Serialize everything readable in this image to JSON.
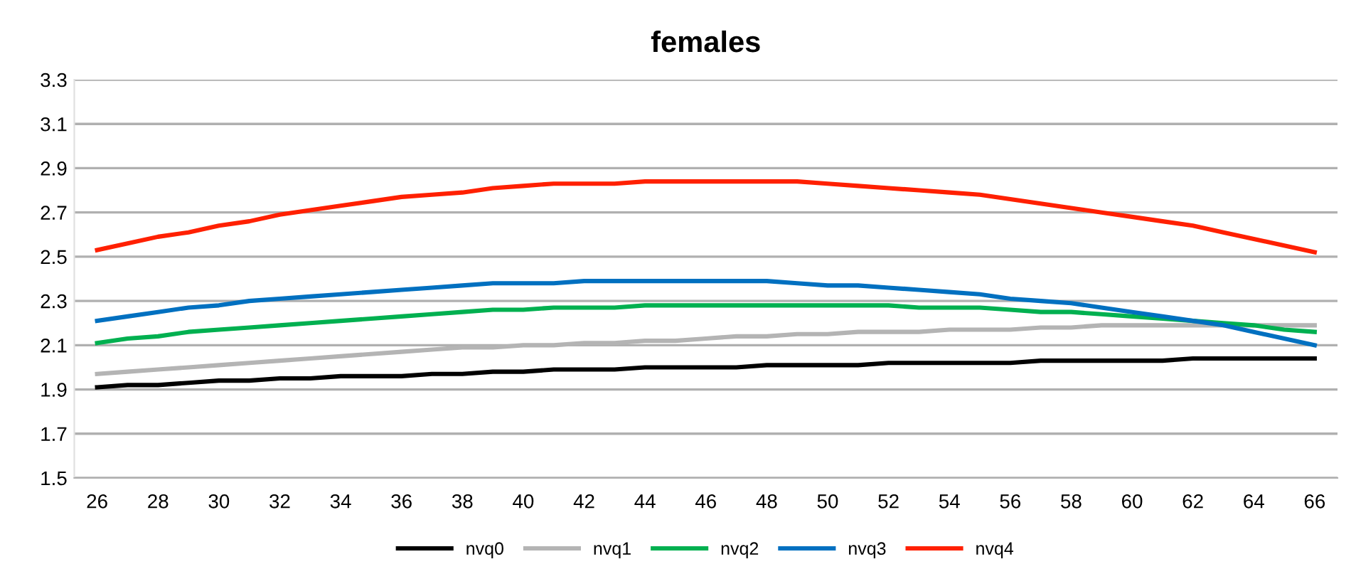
{
  "chart_data": {
    "type": "line",
    "title": "females",
    "categories": [
      "26",
      null,
      "28",
      null,
      "30",
      null,
      "32",
      null,
      "34",
      null,
      "36",
      null,
      "38",
      null,
      "40",
      null,
      "42",
      null,
      "44",
      null,
      "46",
      null,
      "48",
      null,
      "50",
      null,
      "52",
      null,
      "54",
      null,
      "56",
      null,
      "58",
      null,
      "60",
      null,
      "62",
      null,
      "64",
      null,
      "66"
    ],
    "series": [
      {
        "name": "nvq0",
        "color": "#000000",
        "values": [
          1.91,
          1.92,
          1.92,
          1.93,
          1.94,
          1.94,
          1.95,
          1.95,
          1.96,
          1.96,
          1.96,
          1.97,
          1.97,
          1.98,
          1.98,
          1.99,
          1.99,
          1.99,
          2.0,
          2.0,
          2.0,
          2.0,
          2.01,
          2.01,
          2.01,
          2.01,
          2.02,
          2.02,
          2.02,
          2.02,
          2.02,
          2.03,
          2.03,
          2.03,
          2.03,
          2.03,
          2.04,
          2.04,
          2.04,
          2.04,
          2.04
        ]
      },
      {
        "name": "nvq1",
        "color": "#b4b4b4",
        "values": [
          1.97,
          1.98,
          1.99,
          2.0,
          2.01,
          2.02,
          2.03,
          2.04,
          2.05,
          2.06,
          2.07,
          2.08,
          2.09,
          2.09,
          2.1,
          2.1,
          2.11,
          2.11,
          2.12,
          2.12,
          2.13,
          2.14,
          2.14,
          2.15,
          2.15,
          2.16,
          2.16,
          2.16,
          2.17,
          2.17,
          2.17,
          2.18,
          2.18,
          2.19,
          2.19,
          2.19,
          2.19,
          2.19,
          2.19,
          2.19,
          2.19
        ]
      },
      {
        "name": "nvq2",
        "color": "#00b050",
        "values": [
          2.11,
          2.13,
          2.14,
          2.16,
          2.17,
          2.18,
          2.19,
          2.2,
          2.21,
          2.22,
          2.23,
          2.24,
          2.25,
          2.26,
          2.26,
          2.27,
          2.27,
          2.27,
          2.28,
          2.28,
          2.28,
          2.28,
          2.28,
          2.28,
          2.28,
          2.28,
          2.28,
          2.27,
          2.27,
          2.27,
          2.26,
          2.25,
          2.25,
          2.24,
          2.23,
          2.22,
          2.21,
          2.2,
          2.19,
          2.17,
          2.16
        ]
      },
      {
        "name": "nvq3",
        "color": "#0070c0",
        "values": [
          2.21,
          2.23,
          2.25,
          2.27,
          2.28,
          2.3,
          2.31,
          2.32,
          2.33,
          2.34,
          2.35,
          2.36,
          2.37,
          2.38,
          2.38,
          2.38,
          2.39,
          2.39,
          2.39,
          2.39,
          2.39,
          2.39,
          2.39,
          2.38,
          2.37,
          2.37,
          2.36,
          2.35,
          2.34,
          2.33,
          2.31,
          2.3,
          2.29,
          2.27,
          2.25,
          2.23,
          2.21,
          2.19,
          2.16,
          2.13,
          2.1
        ]
      },
      {
        "name": "nvq4",
        "color": "#ff2000",
        "values": [
          2.53,
          2.56,
          2.59,
          2.61,
          2.64,
          2.66,
          2.69,
          2.71,
          2.73,
          2.75,
          2.77,
          2.78,
          2.79,
          2.81,
          2.82,
          2.83,
          2.83,
          2.83,
          2.84,
          2.84,
          2.84,
          2.84,
          2.84,
          2.84,
          2.83,
          2.82,
          2.81,
          2.8,
          2.79,
          2.78,
          2.76,
          2.74,
          2.72,
          2.7,
          2.68,
          2.66,
          2.64,
          2.61,
          2.58,
          2.55,
          2.52
        ]
      }
    ],
    "ylim": [
      1.5,
      3.3
    ],
    "yticks": [
      1.5,
      1.7,
      1.9,
      2.1,
      2.3,
      2.5,
      2.7,
      2.9,
      3.1,
      3.3
    ],
    "grid": "y",
    "legend": "bottom",
    "line_style": "solid",
    "marker": "none"
  }
}
